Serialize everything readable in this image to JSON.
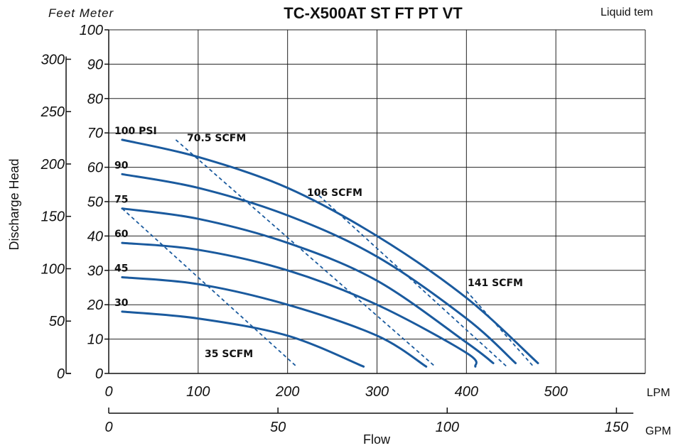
{
  "chart_data": {
    "type": "line",
    "title": "TC-X500AT ST FT PT VT",
    "top_right_note": "Liquid tem",
    "header_units": "Feet Meter",
    "ylabel": "Discharge Head",
    "xlabel": "Flow",
    "x_unit_primary": "LPM",
    "x_unit_secondary": "GPM",
    "xlim_lpm": [
      0,
      600
    ],
    "ylim_meter": [
      0,
      100
    ],
    "x_ticks_lpm": [
      "0",
      "100",
      "200",
      "300",
      "400",
      "500"
    ],
    "x_ticks_gpm": [
      "0",
      "50",
      "100",
      "150"
    ],
    "y_ticks_meter": [
      "0",
      "10",
      "20",
      "30",
      "40",
      "50",
      "60",
      "70",
      "80",
      "90",
      "100"
    ],
    "y_ticks_feet": [
      "0",
      "50",
      "100",
      "150",
      "200",
      "250",
      "300"
    ],
    "series": [
      {
        "name": "100 PSI",
        "x": [
          15,
          100,
          200,
          300,
          400,
          480
        ],
        "y": [
          68,
          63,
          54,
          40,
          22,
          3
        ]
      },
      {
        "name": "90",
        "x": [
          15,
          100,
          200,
          300,
          400,
          455
        ],
        "y": [
          58,
          54,
          46,
          34,
          16,
          3
        ]
      },
      {
        "name": "75",
        "x": [
          15,
          100,
          200,
          300,
          400,
          430
        ],
        "y": [
          48,
          45,
          38,
          27,
          9,
          3
        ]
      },
      {
        "name": "60",
        "x": [
          15,
          100,
          200,
          300,
          400,
          410
        ],
        "y": [
          38,
          36,
          30,
          20,
          6,
          2
        ]
      },
      {
        "name": "45",
        "x": [
          15,
          100,
          200,
          300,
          355
        ],
        "y": [
          28,
          26,
          20,
          11,
          2
        ]
      },
      {
        "name": "30",
        "x": [
          15,
          100,
          200,
          285
        ],
        "y": [
          18,
          16,
          11,
          2
        ]
      }
    ],
    "air_consumption": [
      {
        "label": "35 SCFM",
        "x": [
          15,
          210
        ],
        "y": [
          48,
          2
        ]
      },
      {
        "label": "70.5 SCFM",
        "x": [
          75,
          365
        ],
        "y": [
          68,
          2
        ]
      },
      {
        "label": "106 SCFM",
        "x": [
          230,
          445
        ],
        "y": [
          53,
          2
        ]
      },
      {
        "label": "141 SCFM",
        "x": [
          400,
          475
        ],
        "y": [
          24,
          2
        ]
      }
    ],
    "grid": true
  }
}
